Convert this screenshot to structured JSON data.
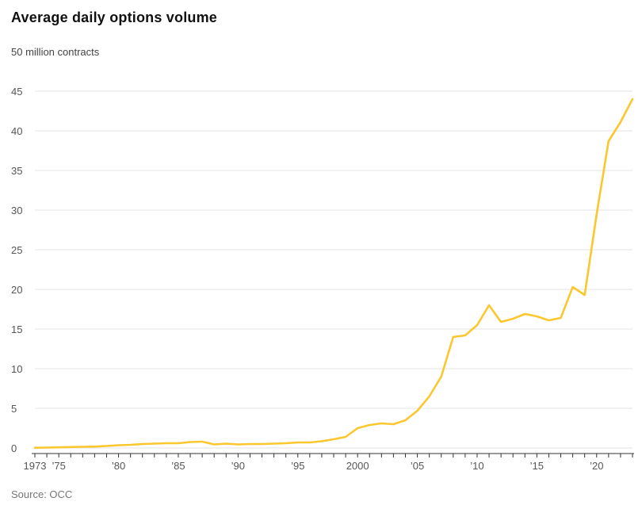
{
  "header": {
    "title": "Average daily options volume"
  },
  "footer": {
    "source": "Source: OCC"
  },
  "chart_data": {
    "type": "line",
    "title": "Average daily options volume",
    "unit_label": "50 million contracts",
    "source": "Source: OCC",
    "ylabel": "million contracts",
    "xlabel": "",
    "ylim": [
      0,
      50
    ],
    "y_ticks": [
      0,
      5,
      10,
      15,
      20,
      25,
      30,
      35,
      40,
      45
    ],
    "grid": true,
    "legend_position": "none",
    "line_color": "#FBC72F",
    "axis_color": "#333333",
    "gridline_color": "#e3e3e3",
    "x_ticks": [
      {
        "year": 1973,
        "label": "1973"
      },
      {
        "year": 1975,
        "label": "’75"
      },
      {
        "year": 1980,
        "label": "’80"
      },
      {
        "year": 1985,
        "label": "’85"
      },
      {
        "year": 1990,
        "label": "’90"
      },
      {
        "year": 1995,
        "label": "’95"
      },
      {
        "year": 2000,
        "label": "2000"
      },
      {
        "year": 2005,
        "label": "’05"
      },
      {
        "year": 2010,
        "label": "’10"
      },
      {
        "year": 2015,
        "label": "’15"
      },
      {
        "year": 2020,
        "label": "’20"
      }
    ],
    "series": [
      {
        "name": "Average daily options volume (million contracts)",
        "x": [
          1973,
          1974,
          1975,
          1976,
          1977,
          1978,
          1979,
          1980,
          1981,
          1982,
          1983,
          1984,
          1985,
          1986,
          1987,
          1988,
          1989,
          1990,
          1991,
          1992,
          1993,
          1994,
          1995,
          1996,
          1997,
          1998,
          1999,
          2000,
          2001,
          2002,
          2003,
          2004,
          2005,
          2006,
          2007,
          2008,
          2009,
          2010,
          2011,
          2012,
          2013,
          2014,
          2015,
          2016,
          2017,
          2018,
          2019,
          2020,
          2021,
          2022,
          2023
        ],
        "values": [
          0.03,
          0.05,
          0.08,
          0.12,
          0.15,
          0.18,
          0.25,
          0.35,
          0.4,
          0.5,
          0.55,
          0.6,
          0.6,
          0.75,
          0.8,
          0.45,
          0.55,
          0.45,
          0.5,
          0.5,
          0.55,
          0.6,
          0.7,
          0.7,
          0.85,
          1.1,
          1.4,
          2.5,
          2.9,
          3.1,
          3.0,
          3.5,
          4.7,
          6.5,
          9.0,
          14.0,
          14.2,
          15.5,
          18.0,
          15.9,
          16.3,
          16.9,
          16.6,
          16.1,
          16.4,
          20.3,
          19.3,
          29.5,
          38.7,
          41.1,
          44.0
        ]
      }
    ]
  }
}
